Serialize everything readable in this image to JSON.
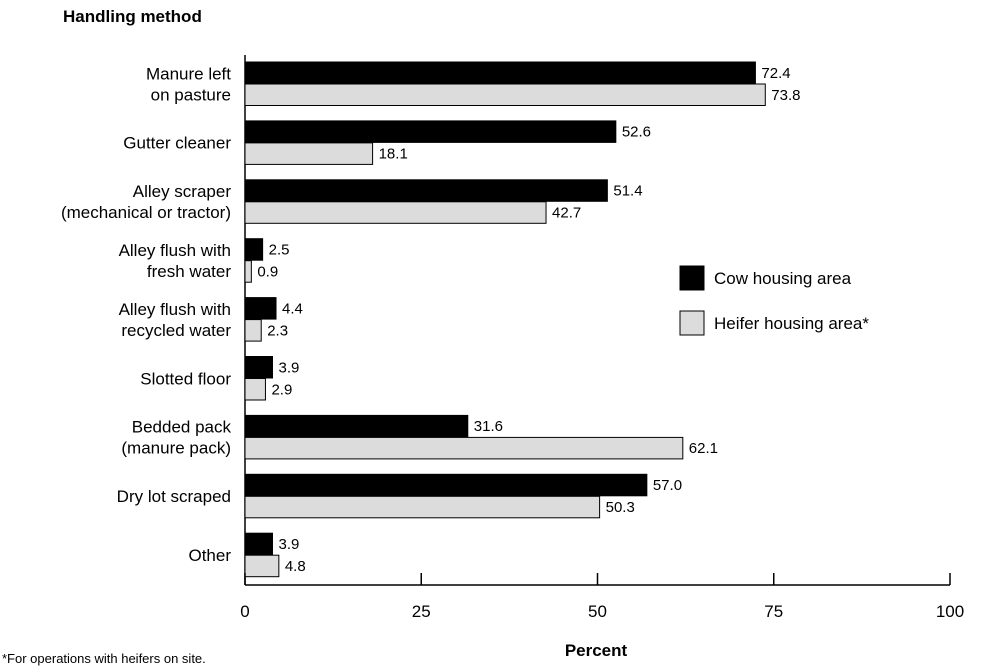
{
  "chart_data": {
    "type": "bar",
    "orientation": "horizontal",
    "ylabel": "Handling method",
    "xlabel": "Percent",
    "xlim": [
      0,
      100
    ],
    "xticks": [
      0,
      25,
      50,
      75,
      100
    ],
    "categories": [
      [
        "Manure left",
        "on pasture"
      ],
      [
        "Gutter cleaner"
      ],
      [
        "Alley scraper",
        "(mechanical or tractor)"
      ],
      [
        "Alley flush with",
        "fresh water"
      ],
      [
        "Alley flush with",
        "recycled water"
      ],
      [
        "Slotted floor"
      ],
      [
        "Bedded pack",
        "(manure pack)"
      ],
      [
        "Dry lot scraped"
      ],
      [
        "Other"
      ]
    ],
    "series": [
      {
        "name": "Cow housing area",
        "color": "#000000",
        "values": [
          72.4,
          52.6,
          51.4,
          2.5,
          4.4,
          3.9,
          31.6,
          57.0,
          3.9
        ],
        "labels": [
          "72.4",
          "52.6",
          "51.4",
          "2.5",
          "4.4",
          "3.9",
          "31.6",
          "57.0",
          "3.9"
        ]
      },
      {
        "name": "Heifer housing area*",
        "color": "#dcdcdc",
        "values": [
          73.8,
          18.1,
          42.7,
          0.9,
          2.3,
          2.9,
          62.1,
          50.3,
          4.8
        ],
        "labels": [
          "73.8",
          "18.1",
          "42.7",
          "0.9",
          "2.3",
          "2.9",
          "62.1",
          "50.3",
          "4.8"
        ]
      }
    ],
    "legend_position": "right-middle",
    "grid": false
  },
  "footnote": "*For operations with heifers on site."
}
